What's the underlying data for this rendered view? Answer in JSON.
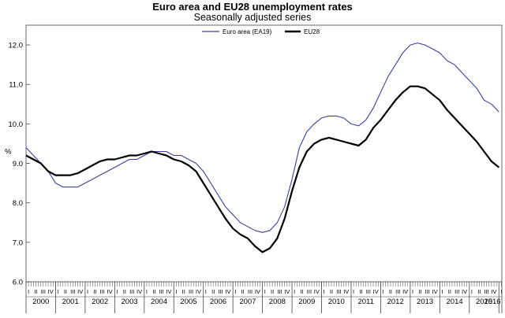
{
  "chart_data": {
    "type": "line",
    "title": "Euro area and EU28 unemployment rates",
    "subtitle": "Seasonally adjusted series",
    "ylabel": "%",
    "xlabel": "",
    "ylim": [
      6.0,
      12.5
    ],
    "yticks": [
      "6.0",
      "7.0",
      "8.0",
      "9.0",
      "10.0",
      "11.0",
      "12.0"
    ],
    "years": [
      "2000",
      "2001",
      "2002",
      "2003",
      "2004",
      "2005",
      "2006",
      "2007",
      "2008",
      "2009",
      "2010",
      "2011",
      "2012",
      "2013",
      "2014",
      "2015",
      "2016"
    ],
    "quarter_labels": [
      "I",
      "II",
      "III",
      "IV"
    ],
    "x_start": 2000.0,
    "x_end": 2016.1,
    "grid": false,
    "legend_position": "top-center",
    "series": [
      {
        "name": "Euro area (EA19)",
        "color": "#3a3f9c",
        "points": [
          [
            2000.0,
            9.4
          ],
          [
            2000.25,
            9.2
          ],
          [
            2000.5,
            9.0
          ],
          [
            2000.75,
            8.8
          ],
          [
            2001.0,
            8.5
          ],
          [
            2001.25,
            8.4
          ],
          [
            2001.5,
            8.4
          ],
          [
            2001.75,
            8.4
          ],
          [
            2002.0,
            8.5
          ],
          [
            2002.25,
            8.6
          ],
          [
            2002.5,
            8.7
          ],
          [
            2002.75,
            8.8
          ],
          [
            2003.0,
            8.9
          ],
          [
            2003.25,
            9.0
          ],
          [
            2003.5,
            9.1
          ],
          [
            2003.75,
            9.1
          ],
          [
            2004.0,
            9.2
          ],
          [
            2004.25,
            9.3
          ],
          [
            2004.5,
            9.3
          ],
          [
            2004.75,
            9.3
          ],
          [
            2005.0,
            9.2
          ],
          [
            2005.25,
            9.2
          ],
          [
            2005.5,
            9.1
          ],
          [
            2005.75,
            9.0
          ],
          [
            2006.0,
            8.8
          ],
          [
            2006.25,
            8.5
          ],
          [
            2006.5,
            8.2
          ],
          [
            2006.75,
            7.9
          ],
          [
            2007.0,
            7.7
          ],
          [
            2007.25,
            7.5
          ],
          [
            2007.5,
            7.4
          ],
          [
            2007.75,
            7.3
          ],
          [
            2008.0,
            7.25
          ],
          [
            2008.25,
            7.3
          ],
          [
            2008.5,
            7.5
          ],
          [
            2008.75,
            7.9
          ],
          [
            2009.0,
            8.6
          ],
          [
            2009.25,
            9.4
          ],
          [
            2009.5,
            9.8
          ],
          [
            2009.75,
            10.0
          ],
          [
            2010.0,
            10.15
          ],
          [
            2010.25,
            10.2
          ],
          [
            2010.5,
            10.2
          ],
          [
            2010.75,
            10.15
          ],
          [
            2011.0,
            10.0
          ],
          [
            2011.25,
            9.95
          ],
          [
            2011.5,
            10.1
          ],
          [
            2011.75,
            10.4
          ],
          [
            2012.0,
            10.8
          ],
          [
            2012.25,
            11.2
          ],
          [
            2012.5,
            11.5
          ],
          [
            2012.75,
            11.8
          ],
          [
            2013.0,
            12.0
          ],
          [
            2013.25,
            12.05
          ],
          [
            2013.5,
            12.0
          ],
          [
            2013.75,
            11.9
          ],
          [
            2014.0,
            11.8
          ],
          [
            2014.25,
            11.6
          ],
          [
            2014.5,
            11.5
          ],
          [
            2014.75,
            11.3
          ],
          [
            2015.0,
            11.1
          ],
          [
            2015.25,
            10.9
          ],
          [
            2015.5,
            10.6
          ],
          [
            2015.75,
            10.5
          ],
          [
            2016.0,
            10.3
          ]
        ]
      },
      {
        "name": "EU28",
        "color": "#000000",
        "points": [
          [
            2000.0,
            9.2
          ],
          [
            2000.25,
            9.1
          ],
          [
            2000.5,
            9.0
          ],
          [
            2000.75,
            8.8
          ],
          [
            2001.0,
            8.7
          ],
          [
            2001.25,
            8.7
          ],
          [
            2001.5,
            8.7
          ],
          [
            2001.75,
            8.75
          ],
          [
            2002.0,
            8.85
          ],
          [
            2002.25,
            8.95
          ],
          [
            2002.5,
            9.05
          ],
          [
            2002.75,
            9.1
          ],
          [
            2003.0,
            9.1
          ],
          [
            2003.25,
            9.15
          ],
          [
            2003.5,
            9.2
          ],
          [
            2003.75,
            9.2
          ],
          [
            2004.0,
            9.25
          ],
          [
            2004.25,
            9.3
          ],
          [
            2004.5,
            9.25
          ],
          [
            2004.75,
            9.2
          ],
          [
            2005.0,
            9.1
          ],
          [
            2005.25,
            9.05
          ],
          [
            2005.5,
            8.95
          ],
          [
            2005.75,
            8.8
          ],
          [
            2006.0,
            8.5
          ],
          [
            2006.25,
            8.2
          ],
          [
            2006.5,
            7.9
          ],
          [
            2006.75,
            7.6
          ],
          [
            2007.0,
            7.35
          ],
          [
            2007.25,
            7.2
          ],
          [
            2007.5,
            7.1
          ],
          [
            2007.75,
            6.9
          ],
          [
            2008.0,
            6.75
          ],
          [
            2008.25,
            6.85
          ],
          [
            2008.5,
            7.1
          ],
          [
            2008.75,
            7.6
          ],
          [
            2009.0,
            8.3
          ],
          [
            2009.25,
            8.9
          ],
          [
            2009.5,
            9.3
          ],
          [
            2009.75,
            9.5
          ],
          [
            2010.0,
            9.6
          ],
          [
            2010.25,
            9.65
          ],
          [
            2010.5,
            9.6
          ],
          [
            2010.75,
            9.55
          ],
          [
            2011.0,
            9.5
          ],
          [
            2011.25,
            9.45
          ],
          [
            2011.5,
            9.6
          ],
          [
            2011.75,
            9.9
          ],
          [
            2012.0,
            10.1
          ],
          [
            2012.25,
            10.35
          ],
          [
            2012.5,
            10.6
          ],
          [
            2012.75,
            10.8
          ],
          [
            2013.0,
            10.95
          ],
          [
            2013.25,
            10.95
          ],
          [
            2013.5,
            10.9
          ],
          [
            2013.75,
            10.75
          ],
          [
            2014.0,
            10.6
          ],
          [
            2014.25,
            10.35
          ],
          [
            2014.5,
            10.15
          ],
          [
            2014.75,
            9.95
          ],
          [
            2015.0,
            9.75
          ],
          [
            2015.25,
            9.55
          ],
          [
            2015.5,
            9.3
          ],
          [
            2015.75,
            9.05
          ],
          [
            2016.0,
            8.9
          ]
        ]
      }
    ]
  }
}
